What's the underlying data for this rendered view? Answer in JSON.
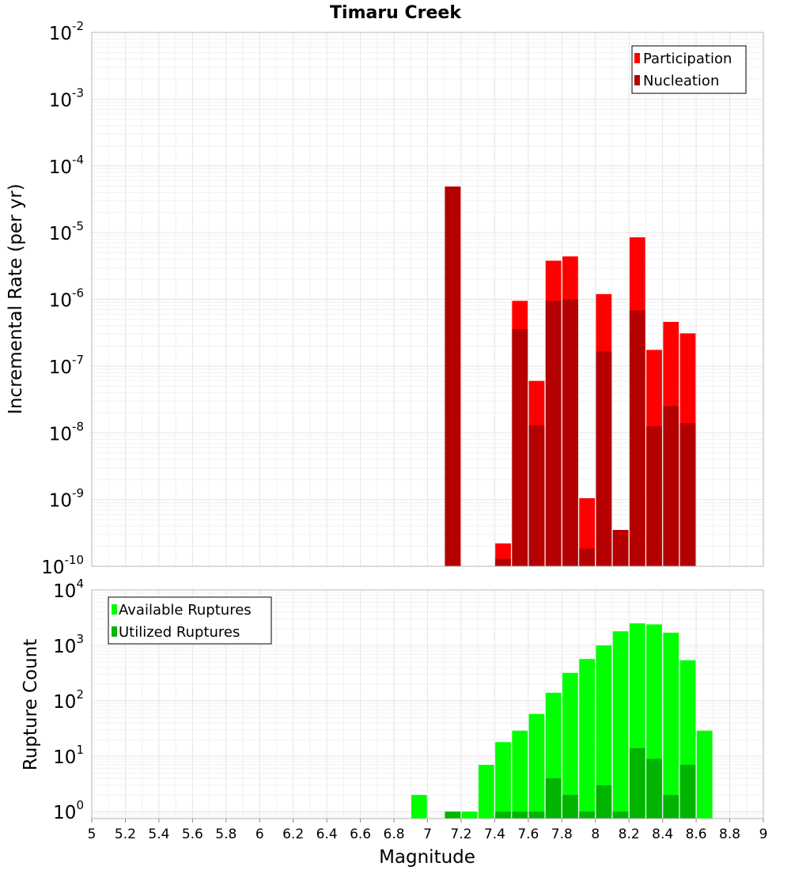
{
  "chart_data": [
    {
      "type": "bar",
      "title": "Timaru Creek",
      "xlabel": "",
      "ylabel": "Incremental Rate (per yr)",
      "yscale": "log",
      "ylim": [
        1e-10,
        0.01
      ],
      "xlim": [
        5,
        9
      ],
      "y_tick_labels": [
        {
          "base": "10",
          "exp": "-2"
        },
        {
          "base": "10",
          "exp": "-3"
        },
        {
          "base": "10",
          "exp": "-4"
        },
        {
          "base": "10",
          "exp": "-5"
        },
        {
          "base": "10",
          "exp": "-6"
        },
        {
          "base": "10",
          "exp": "-7"
        },
        {
          "base": "10",
          "exp": "-8"
        },
        {
          "base": "10",
          "exp": "-9"
        },
        {
          "base": "10",
          "exp": "-10"
        }
      ],
      "legend": [
        "Participation",
        "Nucleation"
      ],
      "legend_position": "top-right",
      "colors": {
        "Participation": "#ff0000",
        "Nucleation": "#b40000"
      },
      "series": [
        {
          "name": "Participation",
          "x": [
            7.15,
            7.45,
            7.55,
            7.65,
            7.75,
            7.85,
            7.95,
            8.05,
            8.15,
            8.25,
            8.35,
            8.45,
            8.55
          ],
          "values": [
            4.9e-05,
            2.2e-10,
            9.5e-07,
            6e-08,
            3.8e-06,
            4.4e-06,
            1.05e-09,
            1.2e-06,
            3.5e-10,
            8.5e-06,
            1.75e-07,
            4.6e-07,
            3.1e-07
          ]
        },
        {
          "name": "Nucleation",
          "x": [
            7.15,
            7.45,
            7.55,
            7.65,
            7.75,
            7.85,
            7.95,
            8.05,
            8.15,
            8.25,
            8.35,
            8.45,
            8.55
          ],
          "values": [
            4.9e-05,
            1.3e-10,
            3.6e-07,
            1.3e-08,
            9.5e-07,
            1e-06,
            1.85e-10,
            1.65e-07,
            3.5e-10,
            6.8e-07,
            1.25e-08,
            2.5e-08,
            1.4e-08
          ]
        }
      ]
    },
    {
      "type": "bar",
      "title": "",
      "xlabel": "Magnitude",
      "ylabel": "Rupture Count",
      "yscale": "log",
      "ylim": [
        0.75,
        10000
      ],
      "xlim": [
        5,
        9
      ],
      "x_ticks": [
        "5",
        "5.2",
        "5.4",
        "5.6",
        "5.8",
        "6",
        "6.2",
        "6.4",
        "6.6",
        "6.8",
        "7",
        "7.2",
        "7.4",
        "7.6",
        "7.8",
        "8",
        "8.2",
        "8.4",
        "8.6",
        "8.8",
        "9"
      ],
      "y_tick_labels": [
        {
          "base": "10",
          "exp": "4"
        },
        {
          "base": "10",
          "exp": "3"
        },
        {
          "base": "10",
          "exp": "2"
        },
        {
          "base": "10",
          "exp": "1"
        },
        {
          "base": "10",
          "exp": "0"
        }
      ],
      "legend": [
        "Available Ruptures",
        "Utilized Ruptures"
      ],
      "legend_position": "top-left",
      "colors": {
        "Available Ruptures": "#00ff00",
        "Utilized Ruptures": "#00b400"
      },
      "series": [
        {
          "name": "Available Ruptures",
          "x": [
            6.95,
            7.15,
            7.25,
            7.35,
            7.45,
            7.55,
            7.65,
            7.75,
            7.85,
            7.95,
            8.05,
            8.15,
            8.25,
            8.35,
            8.45,
            8.55,
            8.65
          ],
          "values": [
            2,
            1,
            1,
            7,
            18,
            29,
            58,
            140,
            320,
            570,
            1000,
            1800,
            2500,
            2400,
            1700,
            540,
            29
          ]
        },
        {
          "name": "Utilized Ruptures",
          "x": [
            7.15,
            7.45,
            7.55,
            7.65,
            7.75,
            7.85,
            7.95,
            8.05,
            8.15,
            8.25,
            8.35,
            8.45,
            8.55
          ],
          "values": [
            1,
            1,
            1,
            1,
            4,
            2,
            1,
            3,
            1,
            14,
            9,
            2,
            7
          ]
        }
      ]
    }
  ]
}
